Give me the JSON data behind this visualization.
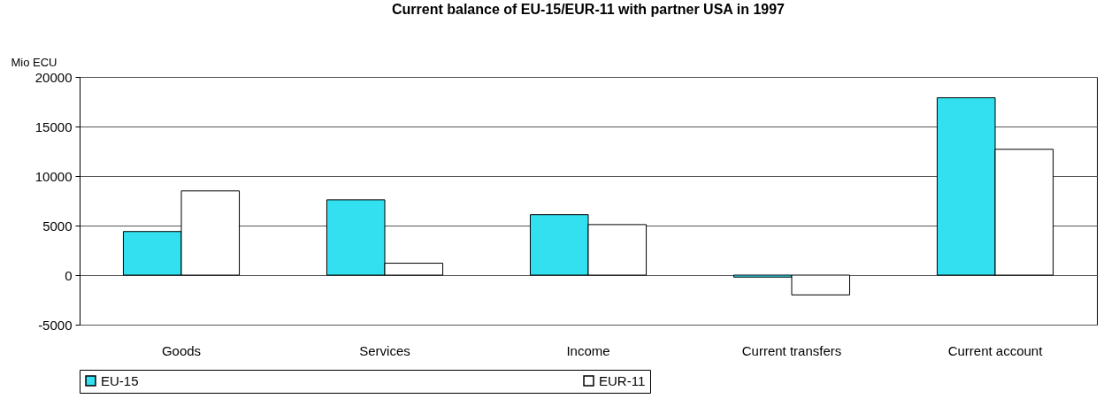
{
  "chart_data": {
    "type": "bar",
    "title": "Current balance of EU-15/EUR-11 with partner USA in 1997",
    "ylabel": "Mio ECU",
    "categories": [
      "Goods",
      "Services",
      "Income",
      "Current transfers",
      "Current account"
    ],
    "series": [
      {
        "name": "EU-15",
        "color": "#33e0f0",
        "values": [
          4400,
          7600,
          6100,
          -200,
          17900
        ]
      },
      {
        "name": "EUR-11",
        "color": "#ffffff",
        "values": [
          8500,
          1200,
          5100,
          -2000,
          12700
        ]
      }
    ],
    "ylim": [
      -5000,
      20000
    ],
    "yticks": [
      -5000,
      0,
      5000,
      10000,
      15000,
      20000
    ],
    "grid": "y",
    "legend": "bottom"
  }
}
